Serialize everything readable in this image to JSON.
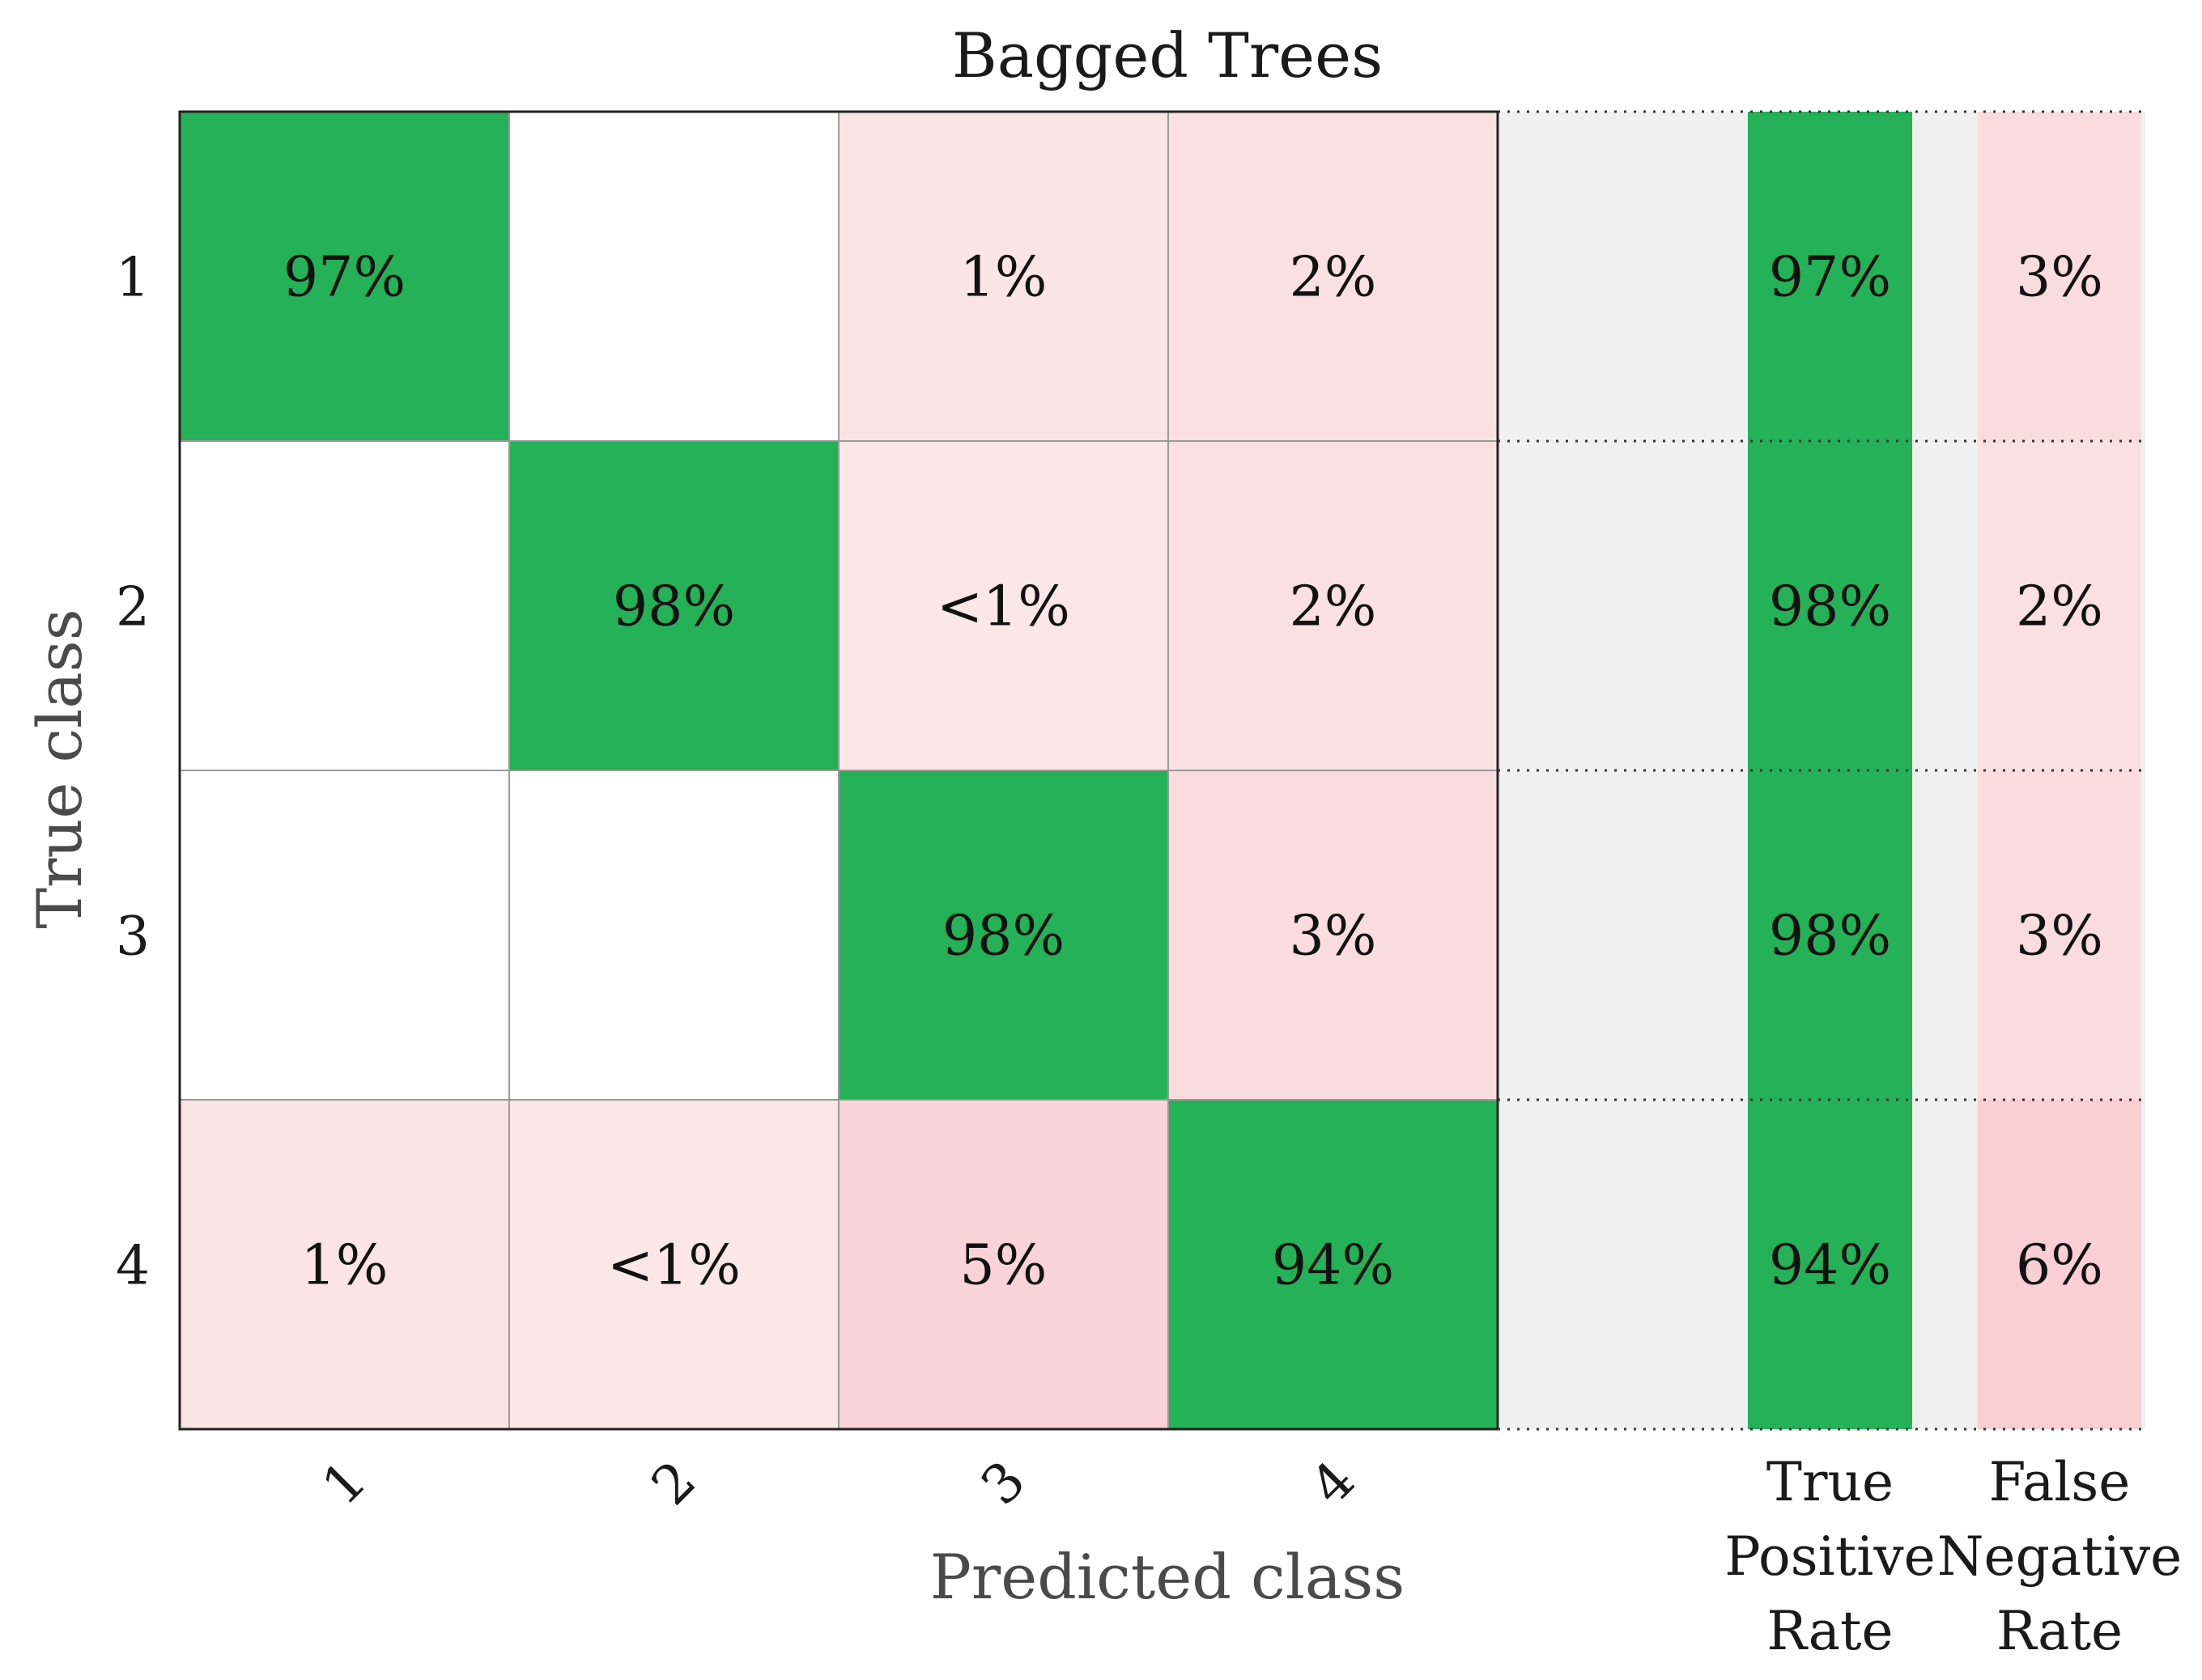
{
  "chart_data": {
    "type": "heatmap",
    "title": "Bagged Trees",
    "xlabel": "Predicted class",
    "ylabel": "True class",
    "row_labels": [
      "1",
      "2",
      "3",
      "4"
    ],
    "col_labels": [
      "1",
      "2",
      "3",
      "4"
    ],
    "matrix_text": [
      [
        "97%",
        "",
        "1%",
        "2%"
      ],
      [
        "",
        "98%",
        "<1%",
        "2%"
      ],
      [
        "",
        "",
        "98%",
        "3%"
      ],
      [
        "1%",
        "<1%",
        "5%",
        "94%"
      ]
    ],
    "matrix_values": [
      [
        97,
        0,
        1,
        2
      ],
      [
        0,
        98,
        0.5,
        2
      ],
      [
        0,
        0,
        98,
        3
      ],
      [
        1,
        0.5,
        5,
        94
      ]
    ],
    "summary_columns": [
      {
        "label_lines": [
          "True",
          "Positive",
          "Rate"
        ],
        "kind": "tpr",
        "text": [
          "97%",
          "98%",
          "98%",
          "94%"
        ],
        "values": [
          97,
          98,
          98,
          94
        ]
      },
      {
        "label_lines": [
          "False",
          "Negative",
          "Rate"
        ],
        "kind": "fnr",
        "text": [
          "3%",
          "2%",
          "3%",
          "6%"
        ],
        "values": [
          3,
          2,
          3,
          6
        ]
      }
    ],
    "colors": {
      "diagonal": "#24b157",
      "off_diagonal_light": "#fbe8ea",
      "off_diagonal_dark": "#f9cfd4",
      "empty": "#ffffff",
      "summary_background": "#f0f0f0",
      "grid": "#999999",
      "frame": "#222222"
    }
  }
}
